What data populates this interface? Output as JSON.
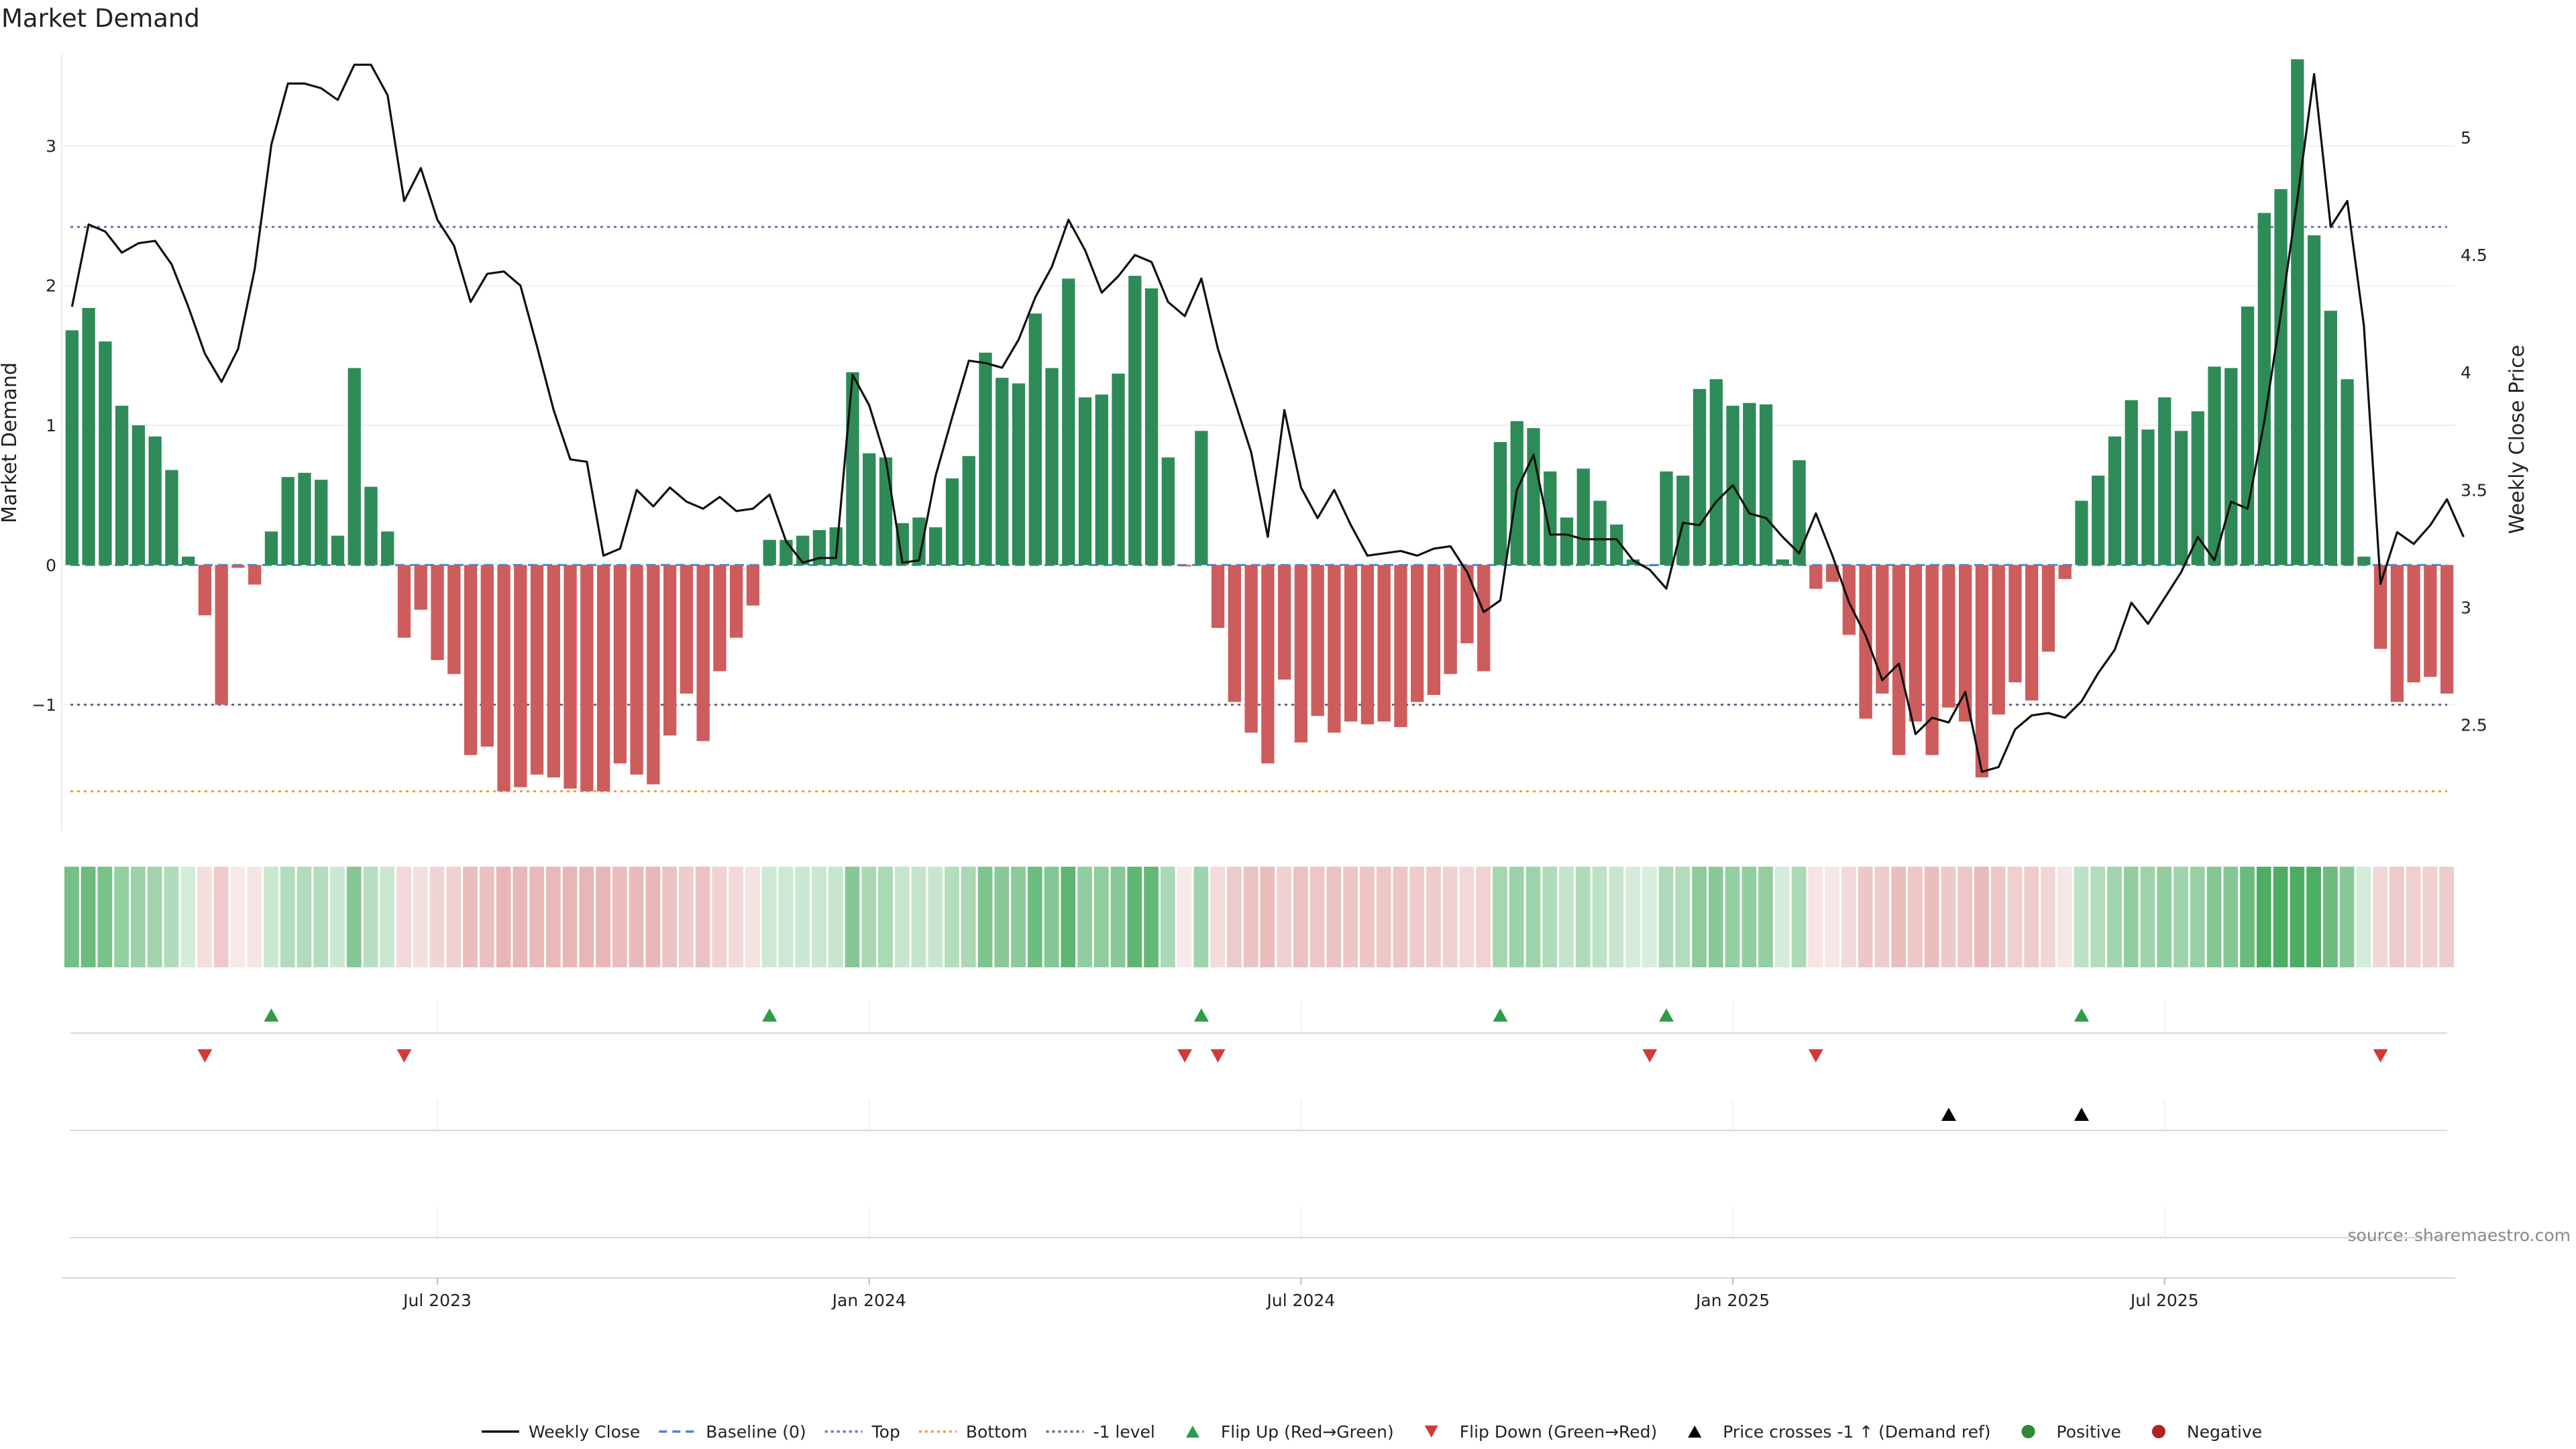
{
  "chart_data": {
    "type": "bar",
    "title": "Market Demand",
    "ylabel": "Market Demand",
    "y2label": "Weekly Close Price",
    "ylim": [
      -1.9,
      3.9
    ],
    "y2lim": [
      2.05,
      5.5
    ],
    "yticks": [
      -1,
      0,
      1,
      2,
      3
    ],
    "ytick_labels": [
      "−1",
      "0",
      "1",
      "2",
      "3"
    ],
    "y2ticks": [
      2.5,
      3,
      3.5,
      4,
      4.5,
      5
    ],
    "y2tick_labels": [
      "2.5",
      "3",
      "3.5",
      "4",
      "4.5",
      "5"
    ],
    "reference_lines": {
      "top": 2.42,
      "bottom": -1.62,
      "minus1": -1.0
    },
    "xticks": [
      {
        "week": 22,
        "label": "Jul 2023"
      },
      {
        "week": 48,
        "label": "Jan 2024"
      },
      {
        "week": 74,
        "label": "Jul 2024"
      },
      {
        "week": 100,
        "label": "Jan 2025"
      },
      {
        "week": 126,
        "label": "Jul 2025"
      }
    ],
    "series": [
      {
        "name": "Market Demand",
        "values": [
          1.68,
          1.84,
          1.6,
          1.14,
          1.0,
          0.92,
          0.68,
          0.06,
          -0.36,
          -1.0,
          -0.02,
          -0.14,
          0.24,
          0.63,
          0.66,
          0.61,
          0.21,
          1.41,
          0.56,
          0.24,
          -0.52,
          -0.32,
          -0.68,
          -0.78,
          -1.36,
          -1.3,
          -1.62,
          -1.59,
          -1.5,
          -1.52,
          -1.6,
          -1.62,
          -1.62,
          -1.42,
          -1.5,
          -1.57,
          -1.22,
          -0.92,
          -1.26,
          -0.76,
          -0.52,
          -0.29,
          0.18,
          0.18,
          0.21,
          0.25,
          0.27,
          1.38,
          0.8,
          0.77,
          0.3,
          0.34,
          0.27,
          0.62,
          0.78,
          1.52,
          1.34,
          1.3,
          1.8,
          1.41,
          2.05,
          1.2,
          1.22,
          1.37,
          2.07,
          1.98,
          0.77,
          -0.01,
          0.96,
          -0.45,
          -0.98,
          -1.2,
          -1.42,
          -0.82,
          -1.27,
          -1.08,
          -1.2,
          -1.12,
          -1.14,
          -1.12,
          -1.16,
          -0.98,
          -0.93,
          -0.78,
          -0.56,
          -0.76,
          0.88,
          1.03,
          0.98,
          0.67,
          0.34,
          0.69,
          0.46,
          0.29,
          0.04,
          0.0,
          0.67,
          0.64,
          1.26,
          1.33,
          1.14,
          1.16,
          1.15,
          0.04,
          0.75,
          -0.17,
          -0.12,
          -0.5,
          -1.1,
          -0.92,
          -1.36,
          -1.12,
          -1.36,
          -1.02,
          -1.12,
          -1.52,
          -1.07,
          -0.84,
          -0.97,
          -0.62,
          -0.1,
          0.46,
          0.64,
          0.92,
          1.18,
          0.97,
          1.2,
          0.96,
          1.1,
          1.42,
          1.41,
          1.85,
          2.52,
          2.69,
          3.62,
          2.36,
          1.82,
          1.33,
          0.06,
          -0.6,
          -0.98,
          -0.84,
          -0.8,
          -0.92
        ]
      },
      {
        "name": "Weekly Close",
        "axis": "right",
        "values": [
          4.28,
          4.63,
          4.6,
          4.51,
          4.55,
          4.56,
          4.46,
          4.28,
          4.08,
          3.96,
          4.1,
          4.44,
          4.97,
          5.23,
          5.23,
          5.21,
          5.16,
          5.31,
          5.31,
          5.18,
          4.73,
          4.87,
          4.65,
          4.54,
          4.3,
          4.42,
          4.43,
          4.37,
          4.11,
          3.84,
          3.63,
          3.62,
          3.22,
          3.25,
          3.5,
          3.43,
          3.51,
          3.45,
          3.42,
          3.47,
          3.41,
          3.42,
          3.48,
          3.28,
          3.19,
          3.21,
          3.21,
          3.99,
          3.86,
          3.63,
          3.19,
          3.2,
          3.56,
          3.81,
          4.05,
          4.04,
          4.02,
          4.14,
          4.32,
          4.45,
          4.65,
          4.52,
          4.34,
          4.41,
          4.5,
          4.47,
          4.3,
          4.24,
          4.4,
          4.1,
          3.88,
          3.66,
          3.3,
          3.84,
          3.51,
          3.38,
          3.5,
          3.35,
          3.22,
          3.23,
          3.24,
          3.22,
          3.25,
          3.26,
          3.15,
          2.98,
          3.03,
          3.5,
          3.65,
          3.31,
          3.31,
          3.29,
          3.29,
          3.29,
          3.2,
          3.16,
          3.08,
          3.36,
          3.35,
          3.45,
          3.52,
          3.4,
          3.38,
          3.3,
          3.23,
          3.4,
          3.22,
          3.02,
          2.88,
          2.69,
          2.76,
          2.46,
          2.53,
          2.51,
          2.64,
          2.3,
          2.32,
          2.48,
          2.54,
          2.55,
          2.53,
          2.6,
          2.72,
          2.82,
          3.02,
          2.93,
          3.04,
          3.15,
          3.3,
          3.2,
          3.45,
          3.42,
          3.79,
          4.25,
          4.74,
          5.27,
          4.62,
          4.73,
          4.2,
          3.1,
          3.32,
          3.27,
          3.35,
          3.46,
          3.3
        ]
      }
    ],
    "intensity_strip": "Color intensity strip of market demand by week",
    "markers": {
      "flip_up_weeks": [
        12,
        42,
        68,
        86,
        96,
        121
      ],
      "flip_down_weeks": [
        8,
        20,
        67,
        69,
        95,
        105,
        139
      ],
      "price_cross_weeks": [
        113,
        121
      ]
    },
    "legend_position": "bottom-center"
  },
  "legend": [
    {
      "label": "Weekly Close",
      "kind": "line",
      "color": "#111111"
    },
    {
      "label": "Baseline (0)",
      "kind": "dash",
      "color": "#4a86c8"
    },
    {
      "label": "Top",
      "kind": "dot",
      "color": "#7b6aa8"
    },
    {
      "label": "Bottom",
      "kind": "dot",
      "color": "#e8a040"
    },
    {
      "label": "-1 level",
      "kind": "dot",
      "color": "#666688"
    },
    {
      "label": "Flip Up (Red→Green)",
      "kind": "tri-up",
      "color": "#2e9c4a"
    },
    {
      "label": "Flip Down (Green→Red)",
      "kind": "tri-down",
      "color": "#d23a3a"
    },
    {
      "label": "Price crosses -1 ↑ (Demand ref)",
      "kind": "tri-up",
      "color": "#000000"
    },
    {
      "label": "Positive",
      "kind": "circle",
      "color": "#2e8b3a"
    },
    {
      "label": "Negative",
      "kind": "circle",
      "color": "#b22222"
    }
  ],
  "source": "source: sharemaestro.com",
  "colors": {
    "positive": "#2e8b57",
    "negative": "#cd5c5c",
    "price": "#111111",
    "top": "#7b6aa8",
    "bottom": "#e8a040",
    "minus1": "#666688",
    "baseline": "#4a86c8"
  }
}
